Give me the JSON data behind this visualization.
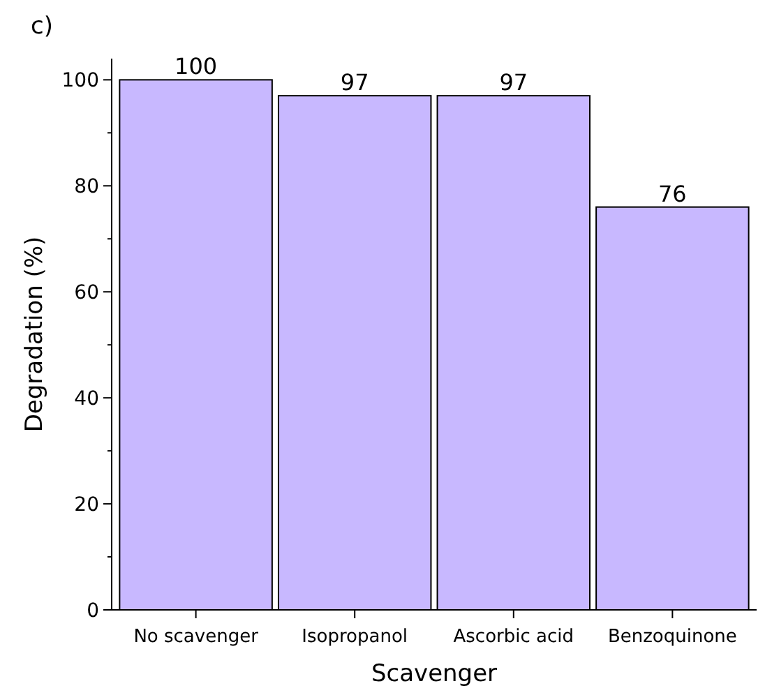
{
  "chart_data": {
    "type": "bar",
    "title": "c)",
    "xlabel": "Scavenger",
    "ylabel": "Degradation (%)",
    "categories": [
      "No scavenger",
      "Isopropanol",
      "Ascorbic acid",
      "Benzoquinone"
    ],
    "values": [
      100,
      97,
      97,
      76
    ],
    "color": "#c8b8ff",
    "data_labels": true,
    "ylim": [
      0,
      104
    ],
    "yticks": [
      0,
      {
        "value": 10,
        "label": null
      },
      20,
      {
        "value": 30,
        "label": null
      },
      40,
      {
        "value": 50,
        "label": null
      },
      60,
      {
        "value": 70,
        "label": null
      },
      80,
      {
        "value": 90,
        "label": null
      },
      100
    ],
    "grid": false
  }
}
